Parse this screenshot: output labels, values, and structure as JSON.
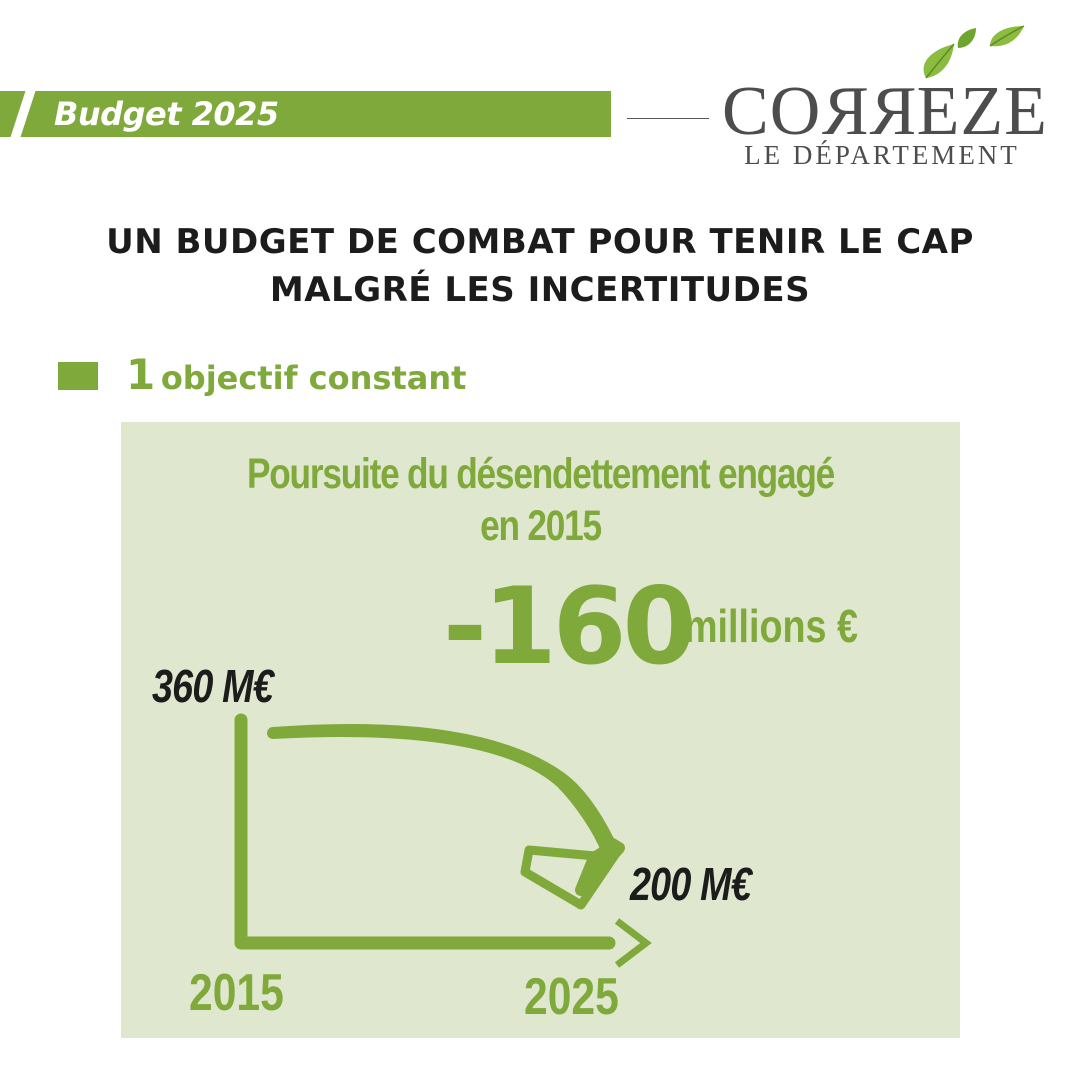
{
  "header": {
    "badge": "Budget 2025",
    "logo": {
      "name_start": "CO",
      "name_reversed": "RR",
      "name_end": "EZE",
      "subtitle": "LE DÉPARTEMENT",
      "icon": "leaves-icon"
    }
  },
  "title": {
    "line1": "UN BUDGET DE COMBAT POUR TENIR LE CAP",
    "line2": "MALGRÉ LES INCERTITUDES"
  },
  "objective": {
    "number": "1",
    "label": "objectif constant"
  },
  "panel": {
    "title_line1": "Poursuite du désendettement engagé",
    "title_line2": "en 2015",
    "reduction_value": "-160",
    "reduction_unit": "millions €",
    "start_value": "360 M€",
    "end_value": "200 M€",
    "start_year": "2015",
    "end_year": "2025"
  },
  "colors": {
    "accent_green": "#7fa93a",
    "panel_background": "#dfe7cf",
    "text_dark": "#1c1c1c",
    "logo_grey": "#4d4d4d"
  }
}
